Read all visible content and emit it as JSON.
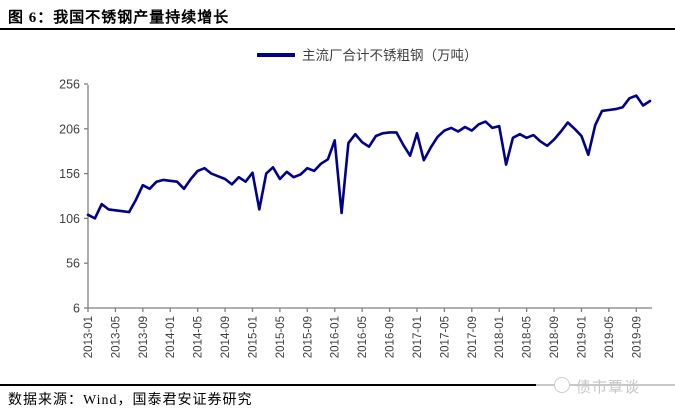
{
  "figure": {
    "title": "图 6：我国不锈钢产量持续增长"
  },
  "chart_data": {
    "type": "line",
    "title": "图 6：我国不锈钢产量持续增长",
    "legend": "主流厂合计不锈粗钢（万吨）",
    "legend_position": "top",
    "grid": false,
    "line_color": "#00008B",
    "axis_color": "#808080",
    "tick_label_color": "#3f3f3f",
    "ylim": [
      6,
      256
    ],
    "y_ticks": [
      6,
      56,
      106,
      156,
      206,
      256
    ],
    "x_tick_every": 4,
    "x": [
      "2013-01",
      "2013-02",
      "2013-03",
      "2013-04",
      "2013-05",
      "2013-06",
      "2013-07",
      "2013-08",
      "2013-09",
      "2013-10",
      "2013-11",
      "2013-12",
      "2014-01",
      "2014-02",
      "2014-03",
      "2014-04",
      "2014-05",
      "2014-06",
      "2014-07",
      "2014-08",
      "2014-09",
      "2014-10",
      "2014-11",
      "2014-12",
      "2015-01",
      "2015-02",
      "2015-03",
      "2015-04",
      "2015-05",
      "2015-06",
      "2015-07",
      "2015-08",
      "2015-09",
      "2015-10",
      "2015-11",
      "2015-12",
      "2016-01",
      "2016-02",
      "2016-03",
      "2016-04",
      "2016-05",
      "2016-06",
      "2016-07",
      "2016-08",
      "2016-09",
      "2016-10",
      "2016-11",
      "2016-12",
      "2017-01",
      "2017-02",
      "2017-03",
      "2017-04",
      "2017-05",
      "2017-06",
      "2017-07",
      "2017-08",
      "2017-09",
      "2017-10",
      "2017-11",
      "2017-12",
      "2018-01",
      "2018-02",
      "2018-03",
      "2018-04",
      "2018-05",
      "2018-06",
      "2018-07",
      "2018-08",
      "2018-09",
      "2018-10",
      "2018-11",
      "2018-12",
      "2019-01",
      "2019-02",
      "2019-03",
      "2019-04",
      "2019-05",
      "2019-06",
      "2019-07",
      "2019-08",
      "2019-09",
      "2019-10",
      "2019-11"
    ],
    "values": [
      110,
      106,
      122,
      116,
      115,
      114,
      113,
      127,
      143,
      139,
      147,
      149,
      148,
      147,
      139,
      150,
      159,
      162,
      156,
      153,
      150,
      144,
      152,
      147,
      157,
      116,
      156,
      163,
      150,
      158,
      152,
      155,
      162,
      159,
      167,
      172,
      193,
      112,
      190,
      200,
      191,
      186,
      198,
      201,
      202,
      202,
      188,
      176,
      201,
      171,
      185,
      197,
      204,
      207,
      203,
      208,
      204,
      211,
      214,
      207,
      209,
      166,
      196,
      200,
      196,
      199,
      192,
      187,
      194,
      203,
      213,
      206,
      198,
      177,
      210,
      226,
      227,
      228,
      230,
      240,
      243,
      232,
      237
    ]
  },
  "footer": {
    "source": "数据来源：Wind，国泰君安证券研究"
  },
  "watermark": {
    "text": "债市覃谈"
  }
}
